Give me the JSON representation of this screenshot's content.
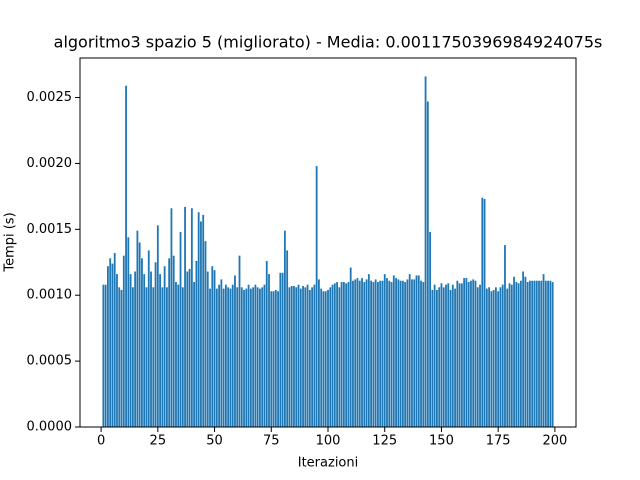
{
  "chart_data": {
    "type": "bar",
    "title": "algoritmo3 spazio 5 (migliorato) - Media: 0.0011750396984924075s",
    "xlabel": "Iterazioni",
    "ylabel": "Tempi (s)",
    "color": "#1f77b4",
    "x": [
      1,
      2,
      3,
      4,
      5,
      6,
      7,
      8,
      9,
      10,
      11,
      12,
      13,
      14,
      15,
      16,
      17,
      18,
      19,
      20,
      21,
      22,
      23,
      24,
      25,
      26,
      27,
      28,
      29,
      30,
      31,
      32,
      33,
      34,
      35,
      36,
      37,
      38,
      39,
      40,
      41,
      42,
      43,
      44,
      45,
      46,
      47,
      48,
      49,
      50,
      51,
      52,
      53,
      54,
      55,
      56,
      57,
      58,
      59,
      60,
      61,
      62,
      63,
      64,
      65,
      66,
      67,
      68,
      69,
      70,
      71,
      72,
      73,
      74,
      75,
      76,
      77,
      78,
      79,
      80,
      81,
      82,
      83,
      84,
      85,
      86,
      87,
      88,
      89,
      90,
      91,
      92,
      93,
      94,
      95,
      96,
      97,
      98,
      99,
      100,
      101,
      102,
      103,
      104,
      105,
      106,
      107,
      108,
      109,
      110,
      111,
      112,
      113,
      114,
      115,
      116,
      117,
      118,
      119,
      120,
      121,
      122,
      123,
      124,
      125,
      126,
      127,
      128,
      129,
      130,
      131,
      132,
      133,
      134,
      135,
      136,
      137,
      138,
      139,
      140,
      141,
      142,
      143,
      144,
      145,
      146,
      147,
      148,
      149,
      150,
      151,
      152,
      153,
      154,
      155,
      156,
      157,
      158,
      159,
      160,
      161,
      162,
      163,
      164,
      165,
      166,
      167,
      168,
      169,
      170,
      171,
      172,
      173,
      174,
      175,
      176,
      177,
      178,
      179,
      180,
      181,
      182,
      183,
      184,
      185,
      186,
      187,
      188,
      189,
      190,
      191,
      192,
      193,
      194,
      195,
      196,
      197,
      198,
      199
    ],
    "values": [
      0.00108,
      0.00108,
      0.00122,
      0.00128,
      0.00124,
      0.00132,
      0.00116,
      0.00106,
      0.00104,
      0.0013,
      0.00259,
      0.00144,
      0.00116,
      0.00106,
      0.00118,
      0.00149,
      0.0014,
      0.00128,
      0.00116,
      0.00106,
      0.00134,
      0.00118,
      0.00106,
      0.00125,
      0.00153,
      0.00116,
      0.00106,
      0.00122,
      0.00106,
      0.00128,
      0.00166,
      0.0013,
      0.0011,
      0.00108,
      0.00148,
      0.00106,
      0.00167,
      0.00118,
      0.0012,
      0.00166,
      0.0011,
      0.00126,
      0.00163,
      0.00156,
      0.00161,
      0.00141,
      0.00118,
      0.00105,
      0.00122,
      0.00119,
      0.00105,
      0.00108,
      0.00112,
      0.00105,
      0.00108,
      0.00106,
      0.00105,
      0.00108,
      0.00115,
      0.00106,
      0.0013,
      0.00106,
      0.00104,
      0.00105,
      0.00108,
      0.00105,
      0.00106,
      0.00108,
      0.00106,
      0.00105,
      0.00106,
      0.00108,
      0.00126,
      0.00116,
      0.00103,
      0.00103,
      0.00104,
      0.00103,
      0.00117,
      0.00117,
      0.00149,
      0.00134,
      0.00106,
      0.00107,
      0.00107,
      0.00106,
      0.00108,
      0.00105,
      0.00107,
      0.00106,
      0.00108,
      0.00104,
      0.00106,
      0.00108,
      0.00198,
      0.00112,
      0.00105,
      0.00103,
      0.00103,
      0.00104,
      0.00106,
      0.00108,
      0.00109,
      0.0011,
      0.00106,
      0.0011,
      0.0011,
      0.00109,
      0.0011,
      0.00121,
      0.00111,
      0.00112,
      0.00113,
      0.00111,
      0.00113,
      0.0011,
      0.00112,
      0.00116,
      0.00111,
      0.0011,
      0.00112,
      0.0011,
      0.00111,
      0.00111,
      0.00116,
      0.00113,
      0.00111,
      0.0011,
      0.00115,
      0.00113,
      0.00112,
      0.00111,
      0.00111,
      0.0011,
      0.00112,
      0.00116,
      0.00112,
      0.00112,
      0.00115,
      0.00115,
      0.00111,
      0.0011,
      0.00266,
      0.00247,
      0.00148,
      0.00104,
      0.00108,
      0.00104,
      0.00106,
      0.00109,
      0.00106,
      0.00108,
      0.00109,
      0.00104,
      0.00108,
      0.00105,
      0.00111,
      0.00109,
      0.00109,
      0.00113,
      0.00113,
      0.0011,
      0.00111,
      0.00112,
      0.00111,
      0.00106,
      0.00108,
      0.00174,
      0.00173,
      0.00105,
      0.00106,
      0.00103,
      0.00104,
      0.00106,
      0.00103,
      0.00106,
      0.00108,
      0.00138,
      0.00105,
      0.00109,
      0.00108,
      0.00114,
      0.0011,
      0.00109,
      0.00111,
      0.00118,
      0.00114,
      0.0011,
      0.00111,
      0.00111,
      0.00111,
      0.00111,
      0.00111,
      0.00111,
      0.00116,
      0.00111,
      0.00111,
      0.00111,
      0.0011
    ],
    "xlim": [
      -9.3,
      209.3
    ],
    "xticks": [
      0,
      25,
      50,
      75,
      100,
      125,
      150,
      175,
      200
    ],
    "ylim": [
      0,
      0.0028
    ],
    "yticks": [
      {
        "value": 0,
        "label": "0.0000"
      },
      0.0005,
      {
        "value": 0.001,
        "label": "0.0010"
      },
      0.0015,
      {
        "value": 0.002,
        "label": "0.0020"
      },
      0.0025
    ]
  }
}
